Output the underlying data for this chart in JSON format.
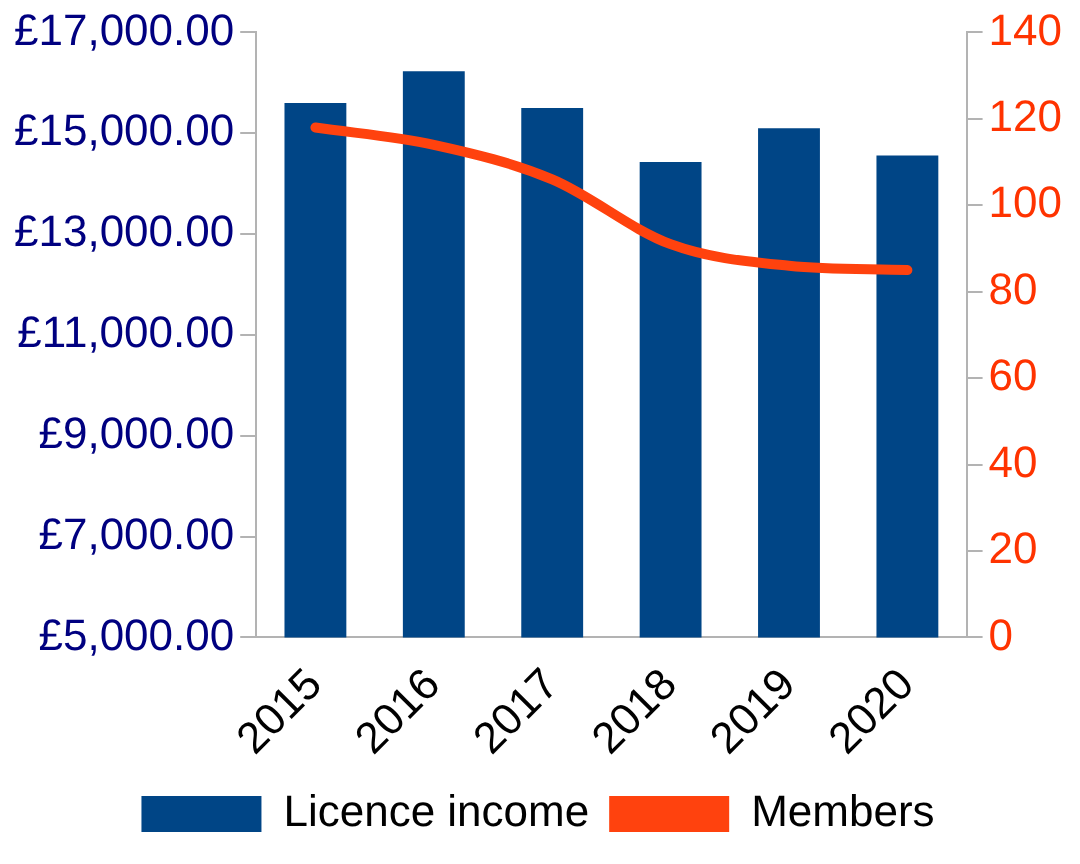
{
  "chart_data": {
    "type": "bar",
    "categories": [
      "2015",
      "2016",
      "2017",
      "2018",
      "2019",
      "2020"
    ],
    "series": [
      {
        "name": "Licence income",
        "color": "#004586",
        "values": [
          15600,
          16230,
          15500,
          14430,
          15100,
          14560
        ]
      },
      {
        "name": "Members",
        "type": "line",
        "axis": "y2",
        "color": "#ff420e",
        "values": [
          118,
          114,
          106,
          91,
          86,
          85
        ]
      }
    ],
    "ylim": [
      5000,
      17000
    ],
    "yticks": [
      {
        "value": 5000,
        "label": "£5,000.00"
      },
      {
        "value": 7000,
        "label": "£7,000.00"
      },
      {
        "value": 9000,
        "label": "£9,000.00"
      },
      {
        "value": 11000,
        "label": "£11,000.00"
      },
      {
        "value": 13000,
        "label": "£13,000.00"
      },
      {
        "value": 15000,
        "label": "£15,000.00"
      },
      {
        "value": 17000,
        "label": "£17,000.00"
      }
    ],
    "y2lim": [
      0,
      140
    ],
    "y2ticks": [
      0,
      20,
      40,
      60,
      80,
      100,
      120,
      140
    ],
    "grid": false,
    "legend": "bottom",
    "marker": "none"
  }
}
